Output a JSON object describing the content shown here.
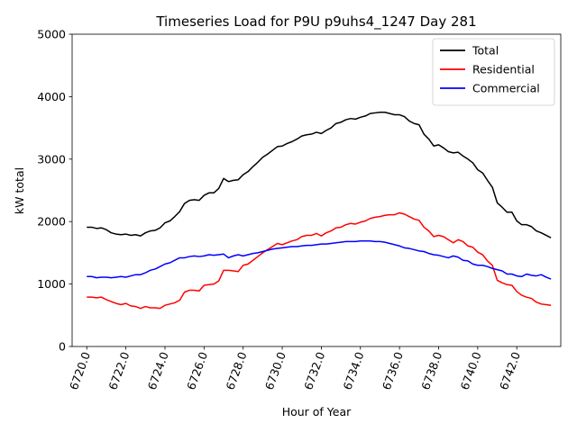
{
  "chart_data": {
    "type": "line",
    "title": "Timeseries Load for P9U p9uhs4_1247  Day 281",
    "xlabel": "Hour of Year",
    "ylabel": "kW total",
    "xlim": [
      6719.25,
      6744.25
    ],
    "ylim": [
      0,
      5000
    ],
    "x_ticks": [
      6720,
      6722,
      6724,
      6726,
      6728,
      6730,
      6732,
      6734,
      6736,
      6738,
      6740,
      6742
    ],
    "x_tick_labels": [
      "6720.0",
      "6722.0",
      "6724.0",
      "6726.0",
      "6728.0",
      "6730.0",
      "6732.0",
      "6734.0",
      "6736.0",
      "6738.0",
      "6740.0",
      "6742.0"
    ],
    "y_ticks": [
      0,
      1000,
      2000,
      3000,
      4000,
      5000
    ],
    "y_tick_labels": [
      "0",
      "1000",
      "2000",
      "3000",
      "4000",
      "5000"
    ],
    "legend_position": "top-right",
    "x_start": 6720,
    "x_step": 0.25,
    "series": [
      {
        "name": "Total",
        "color": "#000000",
        "values": [
          1910,
          1910,
          1890,
          1900,
          1870,
          1820,
          1800,
          1790,
          1800,
          1780,
          1790,
          1770,
          1820,
          1850,
          1860,
          1900,
          1980,
          2010,
          2080,
          2160,
          2290,
          2340,
          2350,
          2340,
          2420,
          2460,
          2460,
          2530,
          2690,
          2640,
          2660,
          2670,
          2750,
          2800,
          2880,
          2950,
          3030,
          3080,
          3140,
          3200,
          3210,
          3250,
          3280,
          3320,
          3370,
          3390,
          3400,
          3430,
          3410,
          3460,
          3500,
          3570,
          3590,
          3630,
          3650,
          3640,
          3670,
          3690,
          3730,
          3740,
          3750,
          3750,
          3730,
          3710,
          3710,
          3680,
          3610,
          3570,
          3550,
          3400,
          3320,
          3210,
          3230,
          3180,
          3120,
          3100,
          3110,
          3050,
          3000,
          2940,
          2830,
          2780,
          2660,
          2550,
          2300,
          2230,
          2150,
          2150,
          2010,
          1950,
          1950,
          1920,
          1850,
          1820,
          1780,
          1740
        ]
      },
      {
        "name": "Residential",
        "color": "#ff0000",
        "values": [
          790,
          790,
          780,
          790,
          750,
          720,
          690,
          670,
          690,
          650,
          640,
          610,
          640,
          620,
          620,
          610,
          660,
          680,
          700,
          740,
          870,
          900,
          900,
          890,
          980,
          990,
          1000,
          1050,
          1220,
          1220,
          1210,
          1200,
          1300,
          1320,
          1380,
          1440,
          1500,
          1550,
          1600,
          1650,
          1630,
          1660,
          1690,
          1710,
          1760,
          1780,
          1780,
          1810,
          1770,
          1820,
          1850,
          1900,
          1910,
          1950,
          1970,
          1960,
          1990,
          2010,
          2050,
          2070,
          2080,
          2100,
          2110,
          2110,
          2140,
          2120,
          2080,
          2040,
          2020,
          1910,
          1850,
          1760,
          1780,
          1760,
          1710,
          1660,
          1710,
          1680,
          1610,
          1590,
          1510,
          1470,
          1370,
          1300,
          1060,
          1020,
          990,
          980,
          880,
          820,
          790,
          770,
          710,
          680,
          670,
          660
        ]
      },
      {
        "name": "Commercial",
        "color": "#0000ff",
        "values": [
          1120,
          1120,
          1100,
          1110,
          1110,
          1100,
          1110,
          1120,
          1110,
          1130,
          1150,
          1150,
          1180,
          1220,
          1240,
          1280,
          1320,
          1340,
          1380,
          1420,
          1420,
          1440,
          1450,
          1440,
          1450,
          1470,
          1460,
          1470,
          1480,
          1420,
          1450,
          1470,
          1450,
          1470,
          1490,
          1500,
          1520,
          1540,
          1560,
          1570,
          1580,
          1590,
          1600,
          1600,
          1610,
          1620,
          1620,
          1630,
          1640,
          1640,
          1650,
          1660,
          1670,
          1680,
          1680,
          1680,
          1690,
          1690,
          1690,
          1680,
          1680,
          1670,
          1650,
          1630,
          1610,
          1580,
          1570,
          1550,
          1530,
          1520,
          1490,
          1470,
          1460,
          1440,
          1420,
          1450,
          1430,
          1380,
          1370,
          1320,
          1300,
          1300,
          1280,
          1250,
          1230,
          1210,
          1160,
          1160,
          1130,
          1120,
          1160,
          1140,
          1130,
          1150,
          1110,
          1080
        ]
      }
    ]
  }
}
